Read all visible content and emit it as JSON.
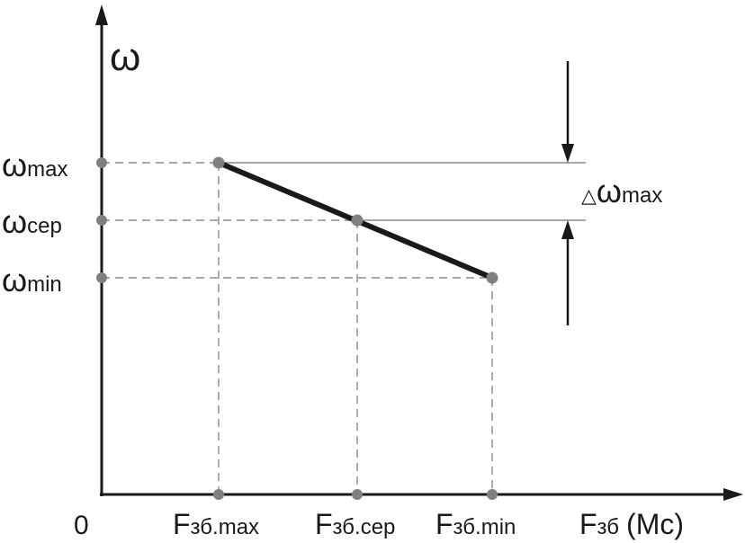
{
  "y_axis_label": "ω",
  "origin_label": "0",
  "y_levels": {
    "max": {
      "symbol": "ω",
      "sub": "max"
    },
    "cep": {
      "symbol": "ω",
      "sub": "cep"
    },
    "min": {
      "symbol": "ω",
      "sub": "min"
    }
  },
  "x_levels": {
    "max": {
      "symbol": "F",
      "sub": "зб.max"
    },
    "cep": {
      "symbol": "F",
      "sub": "зб.сер"
    },
    "min": {
      "symbol": "F",
      "sub": "зб.min"
    }
  },
  "x_axis_label": {
    "symbol": "F",
    "sub": "зб",
    "suffix": "(Mc)"
  },
  "delta_label": {
    "prefix": "△",
    "symbol": "ω",
    "sub": "max"
  },
  "colors": {
    "line": "#1a1a1a",
    "guides": "#8a8a8a",
    "points": "#808080"
  }
}
